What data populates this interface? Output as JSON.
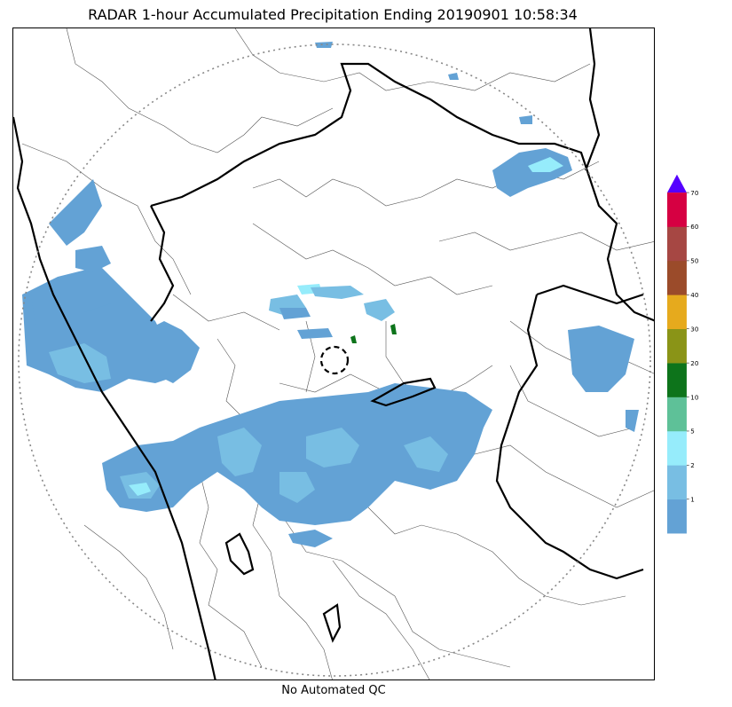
{
  "title": "RADAR 1-hour Accumulated Precipitation Ending 20190901 10:58:34",
  "caption": "No Automated QC",
  "colorbar": {
    "ticks": [
      "1",
      "2",
      "5",
      "10",
      "20",
      "30",
      "40",
      "50",
      "60",
      "70"
    ],
    "colors": [
      "#63a2d5",
      "#78bee3",
      "#96ecfb",
      "#5ec198",
      "#0d741b",
      "#8a9417",
      "#e6aa1d",
      "#9b4b2a",
      "#a64743",
      "#d60042"
    ],
    "extend_color": "#5500ff"
  },
  "map": {
    "range_ring_color": "#888888",
    "rain_light_color": "#63a2d5",
    "rain_moderate_color": "#78bee3",
    "rain_heavy_color": "#96ecfb"
  }
}
